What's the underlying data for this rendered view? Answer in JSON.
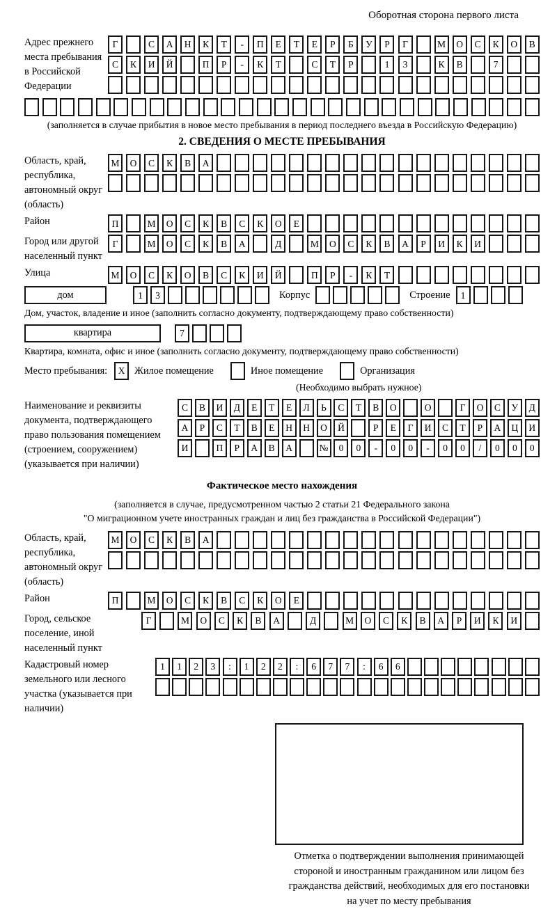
{
  "page": {
    "header_note": "Оборотная сторона первого листа"
  },
  "prev_address": {
    "label": "Адрес прежнего места пребывания в Российской Федерации",
    "rows": [
      [
        "Г",
        "",
        "С",
        "А",
        "Н",
        "К",
        "Т",
        "-",
        "П",
        "Е",
        "Т",
        "Е",
        "Р",
        "Б",
        "У",
        "Р",
        "Г",
        "",
        "М",
        "О",
        "С",
        "К",
        "О",
        "В"
      ],
      [
        "С",
        "К",
        "И",
        "Й",
        "",
        "П",
        "Р",
        "-",
        "К",
        "Т",
        "",
        "С",
        "Т",
        "Р",
        "",
        "1",
        "3",
        "",
        "К",
        "В",
        "",
        "7",
        "",
        ""
      ],
      [
        "",
        "",
        "",
        "",
        "",
        "",
        "",
        "",
        "",
        "",
        "",
        "",
        "",
        "",
        "",
        "",
        "",
        "",
        "",
        "",
        "",
        "",
        "",
        ""
      ]
    ],
    "full_row": [
      "",
      "",
      "",
      "",
      "",
      "",
      "",
      "",
      "",
      "",
      "",
      "",
      "",
      "",
      "",
      "",
      "",
      "",
      "",
      "",
      "",
      "",
      "",
      "",
      "",
      "",
      "",
      "",
      ""
    ],
    "note": "(заполняется в случае прибытия в новое место пребывания в период последнего въезда в Российскую Федерацию)"
  },
  "section2": {
    "title": "2. СВЕДЕНИЯ О МЕСТЕ ПРЕБЫВАНИЯ",
    "region": {
      "label": "Область, край, республика, автономный округ (область)",
      "rows": [
        [
          "М",
          "О",
          "С",
          "К",
          "В",
          "А",
          "",
          "",
          "",
          "",
          "",
          "",
          "",
          "",
          "",
          "",
          "",
          "",
          "",
          "",
          "",
          "",
          "",
          ""
        ],
        [
          "",
          "",
          "",
          "",
          "",
          "",
          "",
          "",
          "",
          "",
          "",
          "",
          "",
          "",
          "",
          "",
          "",
          "",
          "",
          "",
          "",
          "",
          "",
          ""
        ]
      ]
    },
    "district": {
      "label": "Район",
      "cells": [
        "П",
        "",
        "М",
        "О",
        "С",
        "К",
        "В",
        "С",
        "К",
        "О",
        "Е",
        "",
        "",
        "",
        "",
        "",
        "",
        "",
        "",
        "",
        "",
        "",
        "",
        ""
      ]
    },
    "city": {
      "label": "Город или другой населенный пункт",
      "cells": [
        "Г",
        "",
        "М",
        "О",
        "С",
        "К",
        "В",
        "А",
        "",
        "Д",
        "",
        "М",
        "О",
        "С",
        "К",
        "В",
        "А",
        "Р",
        "И",
        "К",
        "И",
        "",
        "",
        ""
      ]
    },
    "street": {
      "label": "Улица",
      "cells": [
        "М",
        "О",
        "С",
        "К",
        "О",
        "В",
        "С",
        "К",
        "И",
        "Й",
        "",
        "П",
        "Р",
        "-",
        "К",
        "Т",
        "",
        "",
        "",
        "",
        "",
        "",
        "",
        ""
      ]
    },
    "house": {
      "label": "дом",
      "cells": [
        "1",
        "3",
        "",
        "",
        "",
        "",
        "",
        ""
      ],
      "korpus_label": "Корпус",
      "korpus_cells": [
        "",
        "",
        "",
        "",
        ""
      ],
      "stroenie_label": "Строение",
      "stroenie_cells": [
        "1",
        "",
        "",
        ""
      ]
    },
    "house_note": "Дом, участок, владение и иное (заполнить согласно документу, подтверждающему право собственности)",
    "apartment": {
      "label": "квартира",
      "cells": [
        "7",
        "",
        "",
        ""
      ]
    },
    "apartment_note": "Квартира, комната, офис и иное (заполнить согласно документу, подтверждающему право собственности)",
    "stay_type": {
      "label": "Место пребывания:",
      "options": [
        {
          "label": "Жилое помещение",
          "checked": "X"
        },
        {
          "label": "Иное помещение",
          "checked": ""
        },
        {
          "label": "Организация",
          "checked": ""
        }
      ],
      "note": "(Необходимо выбрать нужное)"
    },
    "doc": {
      "label": "Наименование и реквизиты документа, подтверждающего право пользования помещением (строением, сооружением) (указывается при наличии)",
      "rows": [
        [
          "С",
          "В",
          "И",
          "Д",
          "Е",
          "Т",
          "Е",
          "Л",
          "Ь",
          "С",
          "Т",
          "В",
          "О",
          "",
          "О",
          "",
          "Г",
          "О",
          "С",
          "У",
          "Д"
        ],
        [
          "А",
          "Р",
          "С",
          "Т",
          "В",
          "Е",
          "Н",
          "Н",
          "О",
          "Й",
          "",
          "Р",
          "Е",
          "Г",
          "И",
          "С",
          "Т",
          "Р",
          "А",
          "Ц",
          "И"
        ],
        [
          "И",
          "",
          "П",
          "Р",
          "А",
          "В",
          "А",
          "",
          "№",
          "0",
          "0",
          "-",
          "0",
          "0",
          "-",
          "0",
          "0",
          "/",
          "0",
          "0",
          "0"
        ]
      ]
    }
  },
  "actual_location": {
    "title": "Фактическое место нахождения",
    "note_line1": "(заполняется в случае, предусмотренном частью 2 статьи 21 Федерального закона",
    "note_line2": "\"О миграционном учете иностранных граждан и лиц без гражданства в Российской Федерации\")",
    "region": {
      "label": "Область, край, республика, автономный округ (область)",
      "rows": [
        [
          "М",
          "О",
          "С",
          "К",
          "В",
          "А",
          "",
          "",
          "",
          "",
          "",
          "",
          "",
          "",
          "",
          "",
          "",
          "",
          "",
          "",
          "",
          "",
          "",
          ""
        ],
        [
          "",
          "",
          "",
          "",
          "",
          "",
          "",
          "",
          "",
          "",
          "",
          "",
          "",
          "",
          "",
          "",
          "",
          "",
          "",
          "",
          "",
          "",
          "",
          ""
        ]
      ]
    },
    "district": {
      "label": "Район",
      "cells": [
        "П",
        "",
        "М",
        "О",
        "С",
        "К",
        "В",
        "С",
        "К",
        "О",
        "Е",
        "",
        "",
        "",
        "",
        "",
        "",
        "",
        "",
        "",
        "",
        "",
        "",
        ""
      ]
    },
    "city": {
      "label": "Город, сельское поселение, иной населенный пункт",
      "cells": [
        "Г",
        "",
        "М",
        "О",
        "С",
        "К",
        "В",
        "А",
        "",
        "Д",
        "",
        "М",
        "О",
        "С",
        "К",
        "В",
        "А",
        "Р",
        "И",
        "К",
        "И",
        ""
      ]
    },
    "cadastral": {
      "label": "Кадастровый номер земельного или лесного участка (указывается при наличии)",
      "rows": [
        [
          "1",
          "1",
          "2",
          "3",
          ":",
          "1",
          "2",
          "2",
          ":",
          "6",
          "7",
          "7",
          ":",
          "6",
          "6",
          "",
          "",
          "",
          "",
          "",
          "",
          "",
          ""
        ],
        [
          "",
          "",
          "",
          "",
          "",
          "",
          "",
          "",
          "",
          "",
          "",
          "",
          "",
          "",
          "",
          "",
          "",
          "",
          "",
          "",
          "",
          "",
          ""
        ]
      ]
    },
    "stamp_caption": {
      "lines": [
        "Отметка о подтверждении выполнения принимающей",
        "стороной и иностранным гражданином или лицом без",
        "гражданства действий, необходимых для его постановки",
        "на учет по месту пребывания"
      ]
    }
  }
}
